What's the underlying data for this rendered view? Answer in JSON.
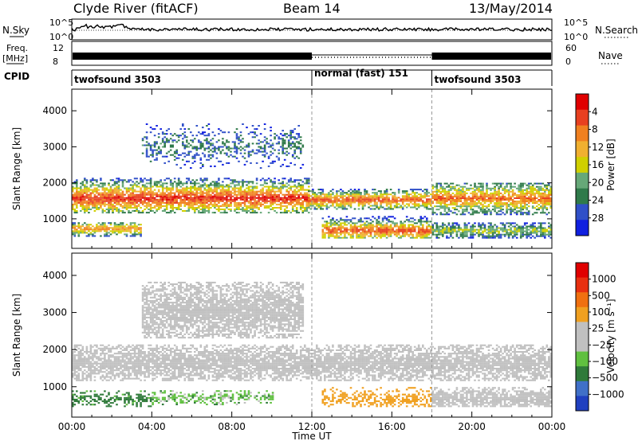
{
  "header": {
    "station": "Clyde River (fitACF)",
    "beam": "Beam 14",
    "date": "13/May/2014"
  },
  "aux_panels": {
    "nsky_label": "N.Sky",
    "nsearch_label": "N.Search",
    "nsky_ticks": [
      "10^5",
      "10^0"
    ],
    "nsearch_ticks": [
      "10^5",
      "10^0"
    ],
    "freq_label": "Freq.",
    "freq_unit": "[MHz]",
    "freq_ticks": [
      "12",
      "8"
    ],
    "nave_label": "Nave",
    "nave_ticks": [
      "60",
      "0"
    ],
    "cpid_label": "CPID",
    "cpid_segments": [
      {
        "name": "twofsound 3503",
        "start_h": 0,
        "end_h": 12
      },
      {
        "name": "normal (fast) 151",
        "start_h": 12,
        "end_h": 18
      },
      {
        "name": "twofsound 3503",
        "start_h": 18,
        "end_h": 24
      }
    ]
  },
  "colors": {
    "power": [
      "#1020e0",
      "#3050c8",
      "#2f7a4a",
      "#66a878",
      "#d0d000",
      "#f0b030",
      "#f08020",
      "#e84020",
      "#e00000"
    ],
    "velocity": [
      "#2040c0",
      "#4070c8",
      "#2f7a3a",
      "#60c040",
      "#c0c0c0",
      "#c0c0c0",
      "#f0a020",
      "#f07010",
      "#e83010",
      "#e00000"
    ],
    "ground_scatter": "#c0c0c0"
  },
  "chart_data": [
    {
      "type": "heatmap",
      "title": "",
      "xlabel": "Time UT",
      "ylabel": "Slant Range [km]",
      "xlim": [
        0,
        24
      ],
      "ylim": [
        180,
        4600
      ],
      "x_ticks": [
        "00:00",
        "04:00",
        "08:00",
        "12:00",
        "16:00",
        "20:00",
        "00:00"
      ],
      "y_ticks": [
        "1000",
        "2000",
        "3000",
        "4000"
      ],
      "colorbar": {
        "label": "Power [dB]",
        "ticks": [
          "4",
          "8",
          "12",
          "16",
          "20",
          "24",
          "28"
        ],
        "range": [
          0,
          30
        ]
      },
      "bands": [
        {
          "x": [
            0,
            11.8
          ],
          "y": [
            1150,
            2100
          ],
          "peak_y": 1550,
          "level": 27
        },
        {
          "x": [
            11.8,
            18
          ],
          "y": [
            1250,
            1800
          ],
          "peak_y": 1500,
          "level": 25
        },
        {
          "x": [
            18,
            24
          ],
          "y": [
            1100,
            2000
          ],
          "peak_y": 1550,
          "level": 23
        },
        {
          "x": [
            0,
            3.5
          ],
          "y": [
            500,
            900
          ],
          "peak_y": 700,
          "level": 22
        },
        {
          "x": [
            12.5,
            18
          ],
          "y": [
            450,
            1050
          ],
          "peak_y": 650,
          "level": 25
        },
        {
          "x": [
            18,
            24
          ],
          "y": [
            450,
            900
          ],
          "peak_y": 650,
          "level": 14
        },
        {
          "x": [
            3.5,
            11.5
          ],
          "y": [
            2300,
            3900
          ],
          "peak_y": 3000,
          "level": 8
        }
      ]
    },
    {
      "type": "heatmap",
      "title": "",
      "xlabel": "Time UT",
      "ylabel": "Slant Range [km]",
      "xlim": [
        0,
        24
      ],
      "ylim": [
        180,
        4600
      ],
      "x_ticks": [
        "00:00",
        "04:00",
        "08:00",
        "12:00",
        "16:00",
        "20:00",
        "00:00"
      ],
      "y_ticks": [
        "1000",
        "2000",
        "3000",
        "4000"
      ],
      "colorbar": {
        "label": "Velocity [m s⁻¹]",
        "ticks": [
          "1000",
          "500",
          "100",
          "25",
          "−25",
          "−100",
          "−500",
          "−1000"
        ]
      },
      "bands": [
        {
          "x": [
            0,
            24
          ],
          "y": [
            1150,
            2100
          ],
          "peak_y": 1600,
          "velocity": 0,
          "kind": "ground"
        },
        {
          "x": [
            3.5,
            11.5
          ],
          "y": [
            2300,
            3800
          ],
          "peak_y": 3000,
          "velocity": 0,
          "kind": "ground"
        },
        {
          "x": [
            0,
            4
          ],
          "y": [
            450,
            900
          ],
          "peak_y": 650,
          "velocity": 150,
          "kind": "ionospheric"
        },
        {
          "x": [
            4,
            10
          ],
          "y": [
            500,
            900
          ],
          "peak_y": 700,
          "velocity": 60,
          "kind": "ionospheric"
        },
        {
          "x": [
            12.5,
            18
          ],
          "y": [
            450,
            1000
          ],
          "peak_y": 650,
          "velocity": -200,
          "kind": "ionospheric"
        },
        {
          "x": [
            18,
            24
          ],
          "y": [
            450,
            950
          ],
          "peak_y": 650,
          "velocity": 0,
          "kind": "ground"
        }
      ]
    }
  ]
}
